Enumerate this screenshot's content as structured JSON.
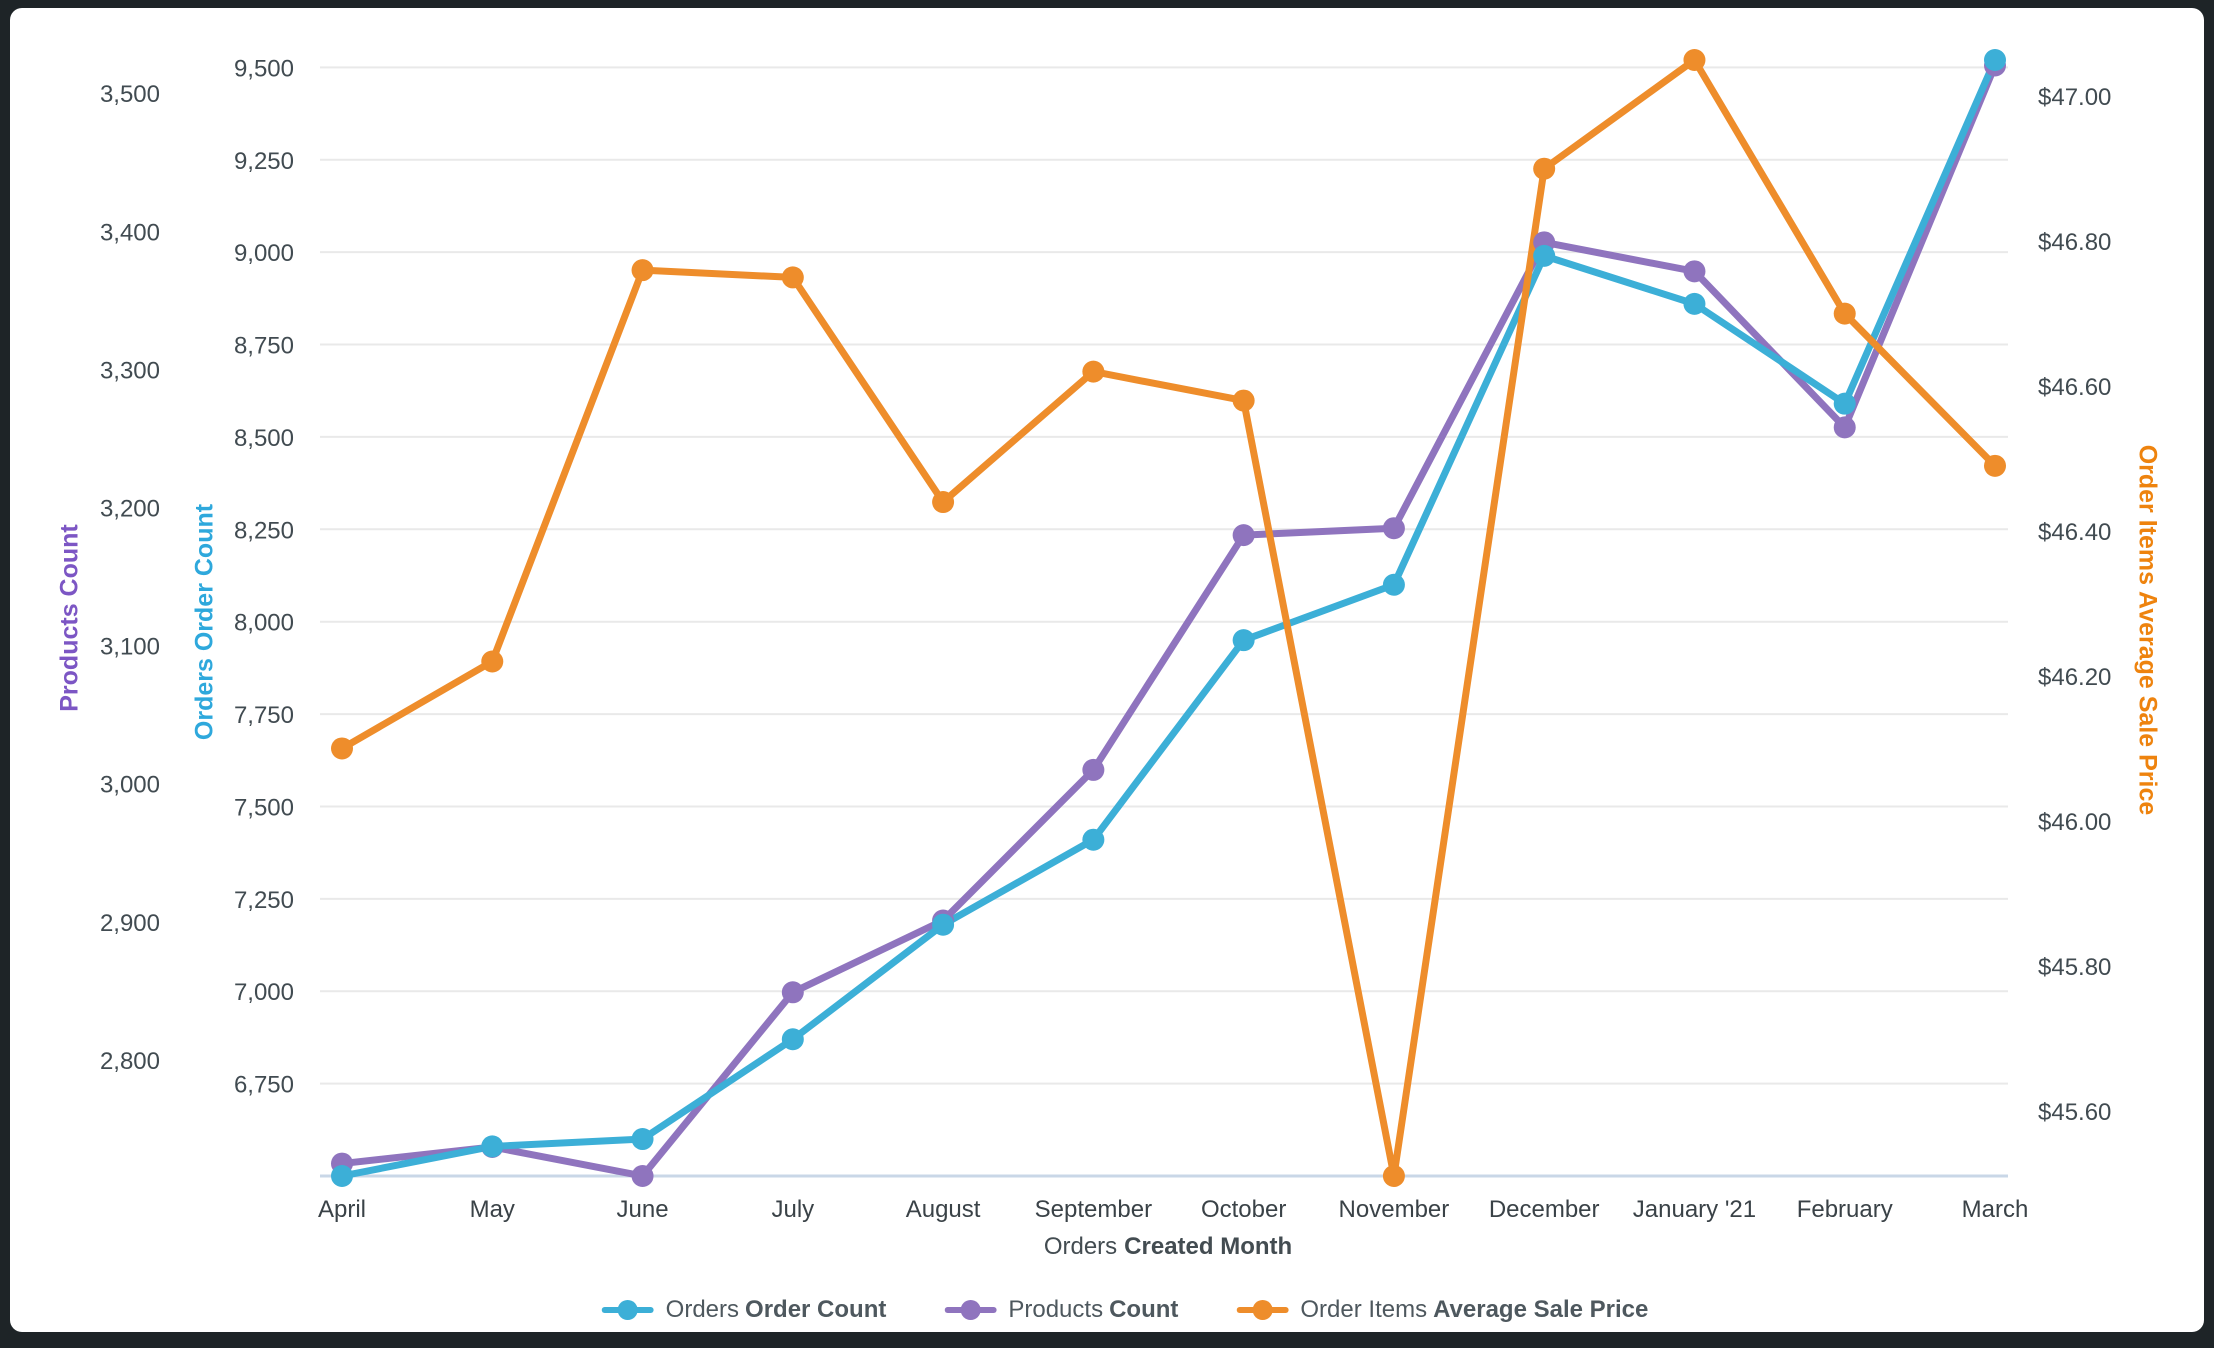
{
  "chart_data": {
    "type": "line",
    "categories": [
      "April",
      "May",
      "June",
      "July",
      "August",
      "September",
      "October",
      "November",
      "December",
      "January '21",
      "February",
      "March"
    ],
    "series": [
      {
        "id": "orders_order_count",
        "label_prefix": "Orders",
        "label_bold": "Order Count",
        "color": "#3CAFD7",
        "axis": "orders",
        "values": [
          6500,
          6580,
          6600,
          6870,
          7180,
          7410,
          7950,
          8100,
          8990,
          8860,
          8590,
          9520
        ]
      },
      {
        "id": "products_count",
        "label_prefix": "Products",
        "label_bold": "Count",
        "color": "#8F74BE",
        "axis": "products",
        "values": [
          2725,
          2737,
          2716,
          2849,
          2901,
          3010,
          3180,
          3185,
          3392,
          3371,
          3258,
          3520
        ]
      },
      {
        "id": "order_items_average_sale_price",
        "label_prefix": "Order Items",
        "label_bold": "Average Sale Price",
        "color": "#EE8D2B",
        "axis": "price",
        "values": [
          46.1,
          46.22,
          46.76,
          46.75,
          46.44,
          46.62,
          46.58,
          45.51,
          46.9,
          47.05,
          46.7,
          46.49
        ]
      }
    ],
    "axes": {
      "products": {
        "title": "Products Count",
        "title_color": "#7C56C4",
        "range": [
          2716,
          3524
        ],
        "ticks": [
          {
            "v": 2800,
            "label": "2,800"
          },
          {
            "v": 2900,
            "label": "2,900"
          },
          {
            "v": 3000,
            "label": "3,000"
          },
          {
            "v": 3100,
            "label": "3,100"
          },
          {
            "v": 3200,
            "label": "3,200"
          },
          {
            "v": 3300,
            "label": "3,300"
          },
          {
            "v": 3400,
            "label": "3,400"
          },
          {
            "v": 3500,
            "label": "3,500"
          }
        ]
      },
      "orders": {
        "title": "Orders Order Count",
        "title_color": "#2EA8DC",
        "range": [
          6500,
          9520
        ],
        "ticks": [
          {
            "v": 6750,
            "label": "6,750"
          },
          {
            "v": 7000,
            "label": "7,000"
          },
          {
            "v": 7250,
            "label": "7,250"
          },
          {
            "v": 7500,
            "label": "7,500"
          },
          {
            "v": 7750,
            "label": "7,750"
          },
          {
            "v": 8000,
            "label": "8,000"
          },
          {
            "v": 8250,
            "label": "8,250"
          },
          {
            "v": 8500,
            "label": "8,500"
          },
          {
            "v": 8750,
            "label": "8,750"
          },
          {
            "v": 9000,
            "label": "9,000"
          },
          {
            "v": 9250,
            "label": "9,250"
          },
          {
            "v": 9500,
            "label": "9,500"
          }
        ]
      },
      "price": {
        "title": "Order Items Average Sale Price",
        "title_color": "#EE830E",
        "range": [
          45.51,
          47.05
        ],
        "ticks": [
          {
            "v": 45.6,
            "label": "$45.60"
          },
          {
            "v": 45.8,
            "label": "$45.80"
          },
          {
            "v": 46.0,
            "label": "$46.00"
          },
          {
            "v": 46.2,
            "label": "$46.20"
          },
          {
            "v": 46.4,
            "label": "$46.40"
          },
          {
            "v": 46.6,
            "label": "$46.60"
          },
          {
            "v": 46.8,
            "label": "$46.80"
          },
          {
            "v": 47.0,
            "label": "$47.00"
          }
        ]
      }
    },
    "x_axis": {
      "title_prefix": "Orders",
      "title_bold": "Created Month",
      "grid": true
    },
    "legend_position": "bottom"
  },
  "colors": {
    "gridline": "#E9E9E9",
    "baseline": "#C9D7E7",
    "frame": "#1E2427",
    "card": "#FFFFFF"
  }
}
